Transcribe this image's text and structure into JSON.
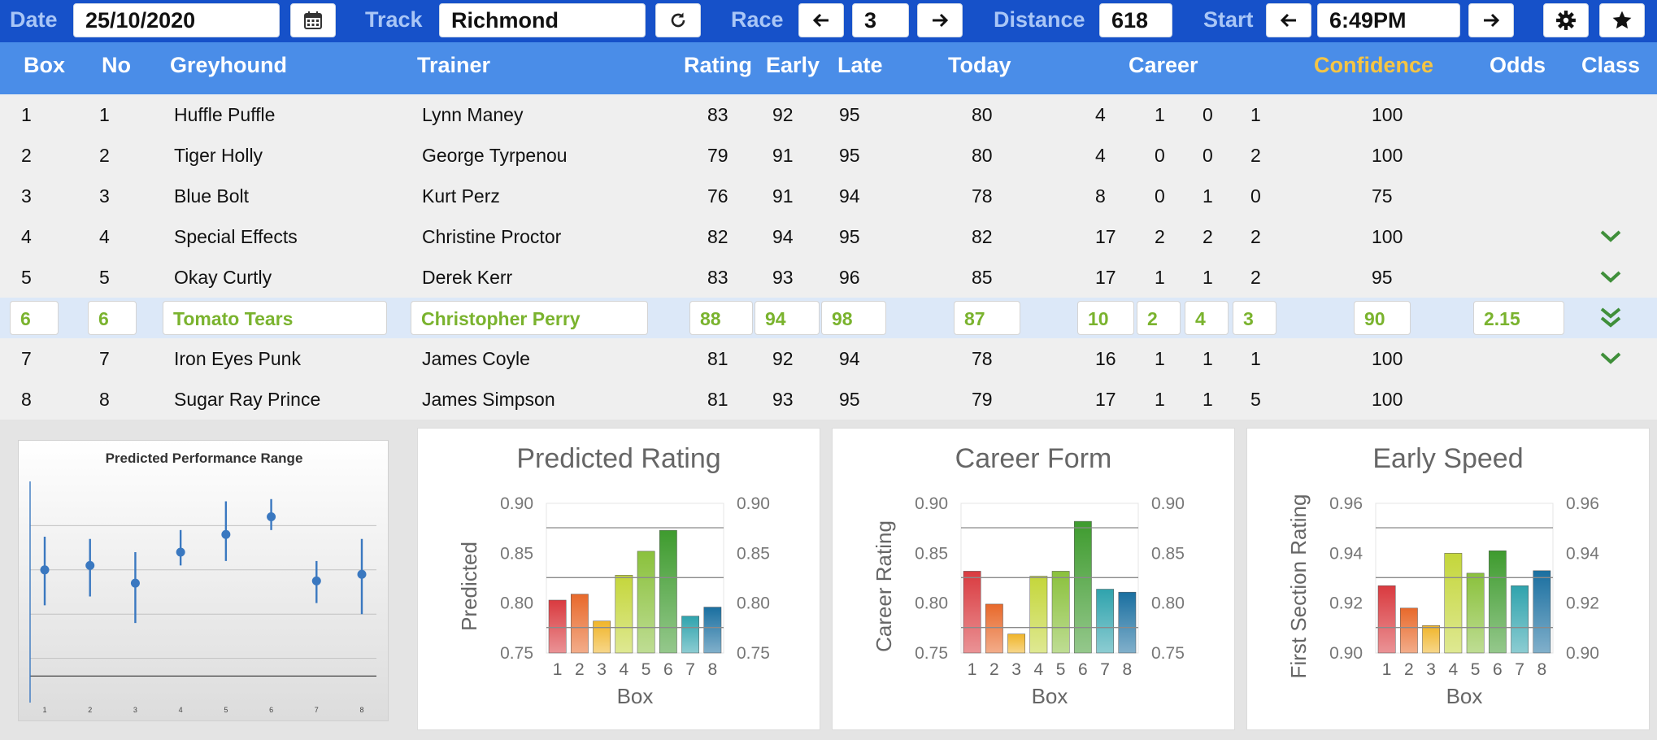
{
  "toolbar": {
    "date_label": "Date",
    "date_value": "25/10/2020",
    "track_label": "Track",
    "track_value": "Richmond",
    "race_label": "Race",
    "race_value": "3",
    "distance_label": "Distance",
    "distance_value": "618",
    "start_label": "Start",
    "start_value": "6:49PM"
  },
  "icons": {
    "calendar": "calendar-icon",
    "refresh": "refresh-icon",
    "arrow_left": "arrow-left-icon",
    "arrow_right": "arrow-right-icon",
    "gear": "gear-icon",
    "star": "star-icon",
    "chevron": "chevron-down-icon"
  },
  "headers": {
    "box": "Box",
    "no": "No",
    "greyhound": "Greyhound",
    "trainer": "Trainer",
    "rating": "Rating",
    "early": "Early",
    "late": "Late",
    "today": "Today",
    "career": "Career",
    "confidence": "Confidence",
    "odds": "Odds",
    "class": "Class"
  },
  "rows": [
    {
      "box": "1",
      "no": "1",
      "greyhound": "Huffle Puffle",
      "trainer": "Lynn Maney",
      "rating": "83",
      "early": "92",
      "late": "95",
      "today": "80",
      "c1": "4",
      "c2": "1",
      "c3": "0",
      "c4": "1",
      "confidence": "100",
      "odds": "",
      "class": ""
    },
    {
      "box": "2",
      "no": "2",
      "greyhound": "Tiger Holly",
      "trainer": "George Tyrpenou",
      "rating": "79",
      "early": "91",
      "late": "95",
      "today": "80",
      "c1": "4",
      "c2": "0",
      "c3": "0",
      "c4": "2",
      "confidence": "100",
      "odds": "",
      "class": ""
    },
    {
      "box": "3",
      "no": "3",
      "greyhound": "Blue Bolt",
      "trainer": "Kurt Perz",
      "rating": "76",
      "early": "91",
      "late": "94",
      "today": "78",
      "c1": "8",
      "c2": "0",
      "c3": "1",
      "c4": "0",
      "confidence": "75",
      "odds": "",
      "class": ""
    },
    {
      "box": "4",
      "no": "4",
      "greyhound": "Special Effects",
      "trainer": "Christine Proctor",
      "rating": "82",
      "early": "94",
      "late": "95",
      "today": "82",
      "c1": "17",
      "c2": "2",
      "c3": "2",
      "c4": "2",
      "confidence": "100",
      "odds": "",
      "class": "single"
    },
    {
      "box": "5",
      "no": "5",
      "greyhound": "Okay Curtly",
      "trainer": "Derek Kerr",
      "rating": "83",
      "early": "93",
      "late": "96",
      "today": "85",
      "c1": "17",
      "c2": "1",
      "c3": "1",
      "c4": "2",
      "confidence": "95",
      "odds": "",
      "class": "single"
    },
    {
      "box": "6",
      "no": "6",
      "greyhound": "Tomato Tears",
      "trainer": "Christopher Perry",
      "rating": "88",
      "early": "94",
      "late": "98",
      "today": "87",
      "c1": "10",
      "c2": "2",
      "c3": "4",
      "c4": "3",
      "confidence": "90",
      "odds": "2.15",
      "class": "double",
      "highlight": true
    },
    {
      "box": "7",
      "no": "7",
      "greyhound": "Iron Eyes Punk",
      "trainer": "James Coyle",
      "rating": "81",
      "early": "92",
      "late": "94",
      "today": "78",
      "c1": "16",
      "c2": "1",
      "c3": "1",
      "c4": "1",
      "confidence": "100",
      "odds": "",
      "class": "single"
    },
    {
      "box": "8",
      "no": "8",
      "greyhound": "Sugar Ray Prince",
      "trainer": "James Simpson",
      "rating": "81",
      "early": "93",
      "late": "95",
      "today": "79",
      "c1": "17",
      "c2": "1",
      "c3": "1",
      "c4": "5",
      "confidence": "100",
      "odds": "",
      "class": ""
    }
  ],
  "colors": {
    "toolbar_bg": "#1651c9",
    "header_bg": "#4a8de8",
    "highlight_text": "#7ab32e",
    "confidence_header": "#f5c544",
    "chevron": "#3f8f3a",
    "bars": [
      "#d93a3f",
      "#e8692b",
      "#f0b52a",
      "#c4d63a",
      "#8ac13c",
      "#3e9b2e",
      "#2fa3ad",
      "#1a6fa0"
    ]
  },
  "chart_data": [
    {
      "type": "scatter",
      "title": "Predicted Performance Range",
      "x": [
        1,
        2,
        3,
        4,
        5,
        6,
        7,
        8
      ],
      "y": [
        0.6,
        0.62,
        0.54,
        0.68,
        0.76,
        0.84,
        0.55,
        0.58
      ],
      "low": [
        0.44,
        0.48,
        0.36,
        0.62,
        0.64,
        0.78,
        0.45,
        0.4
      ],
      "high": [
        0.75,
        0.74,
        0.68,
        0.78,
        0.91,
        0.92,
        0.64,
        0.74
      ],
      "xticks": [
        "1",
        "2",
        "3",
        "4",
        "5",
        "6",
        "7",
        "8"
      ],
      "ylim": [
        0,
        1
      ]
    },
    {
      "type": "bar",
      "title": "Predicted Rating",
      "xlabel": "Box",
      "ylabel": "Predicted",
      "categories": [
        "1",
        "2",
        "3",
        "4",
        "5",
        "6",
        "7",
        "8"
      ],
      "values": [
        0.803,
        0.809,
        0.782,
        0.828,
        0.852,
        0.873,
        0.787,
        0.796
      ],
      "ylim": [
        0.75,
        0.9
      ],
      "yticks": [
        "0.75",
        "0.80",
        "0.85",
        "0.90"
      ]
    },
    {
      "type": "bar",
      "title": "Career Form",
      "xlabel": "Box",
      "ylabel": "Career Rating",
      "categories": [
        "1",
        "2",
        "3",
        "4",
        "5",
        "6",
        "7",
        "8"
      ],
      "values": [
        0.832,
        0.799,
        0.769,
        0.827,
        0.832,
        0.882,
        0.814,
        0.811
      ],
      "ylim": [
        0.75,
        0.9
      ],
      "yticks": [
        "0.75",
        "0.80",
        "0.85",
        "0.90"
      ]
    },
    {
      "type": "bar",
      "title": "Early Speed",
      "xlabel": "Box",
      "ylabel": "First Section Rating",
      "categories": [
        "1",
        "2",
        "3",
        "4",
        "5",
        "6",
        "7",
        "8"
      ],
      "values": [
        0.927,
        0.918,
        0.911,
        0.94,
        0.932,
        0.941,
        0.927,
        0.933
      ],
      "ylim": [
        0.9,
        0.96
      ],
      "yticks": [
        "0.90",
        "0.92",
        "0.94",
        "0.96"
      ]
    }
  ]
}
